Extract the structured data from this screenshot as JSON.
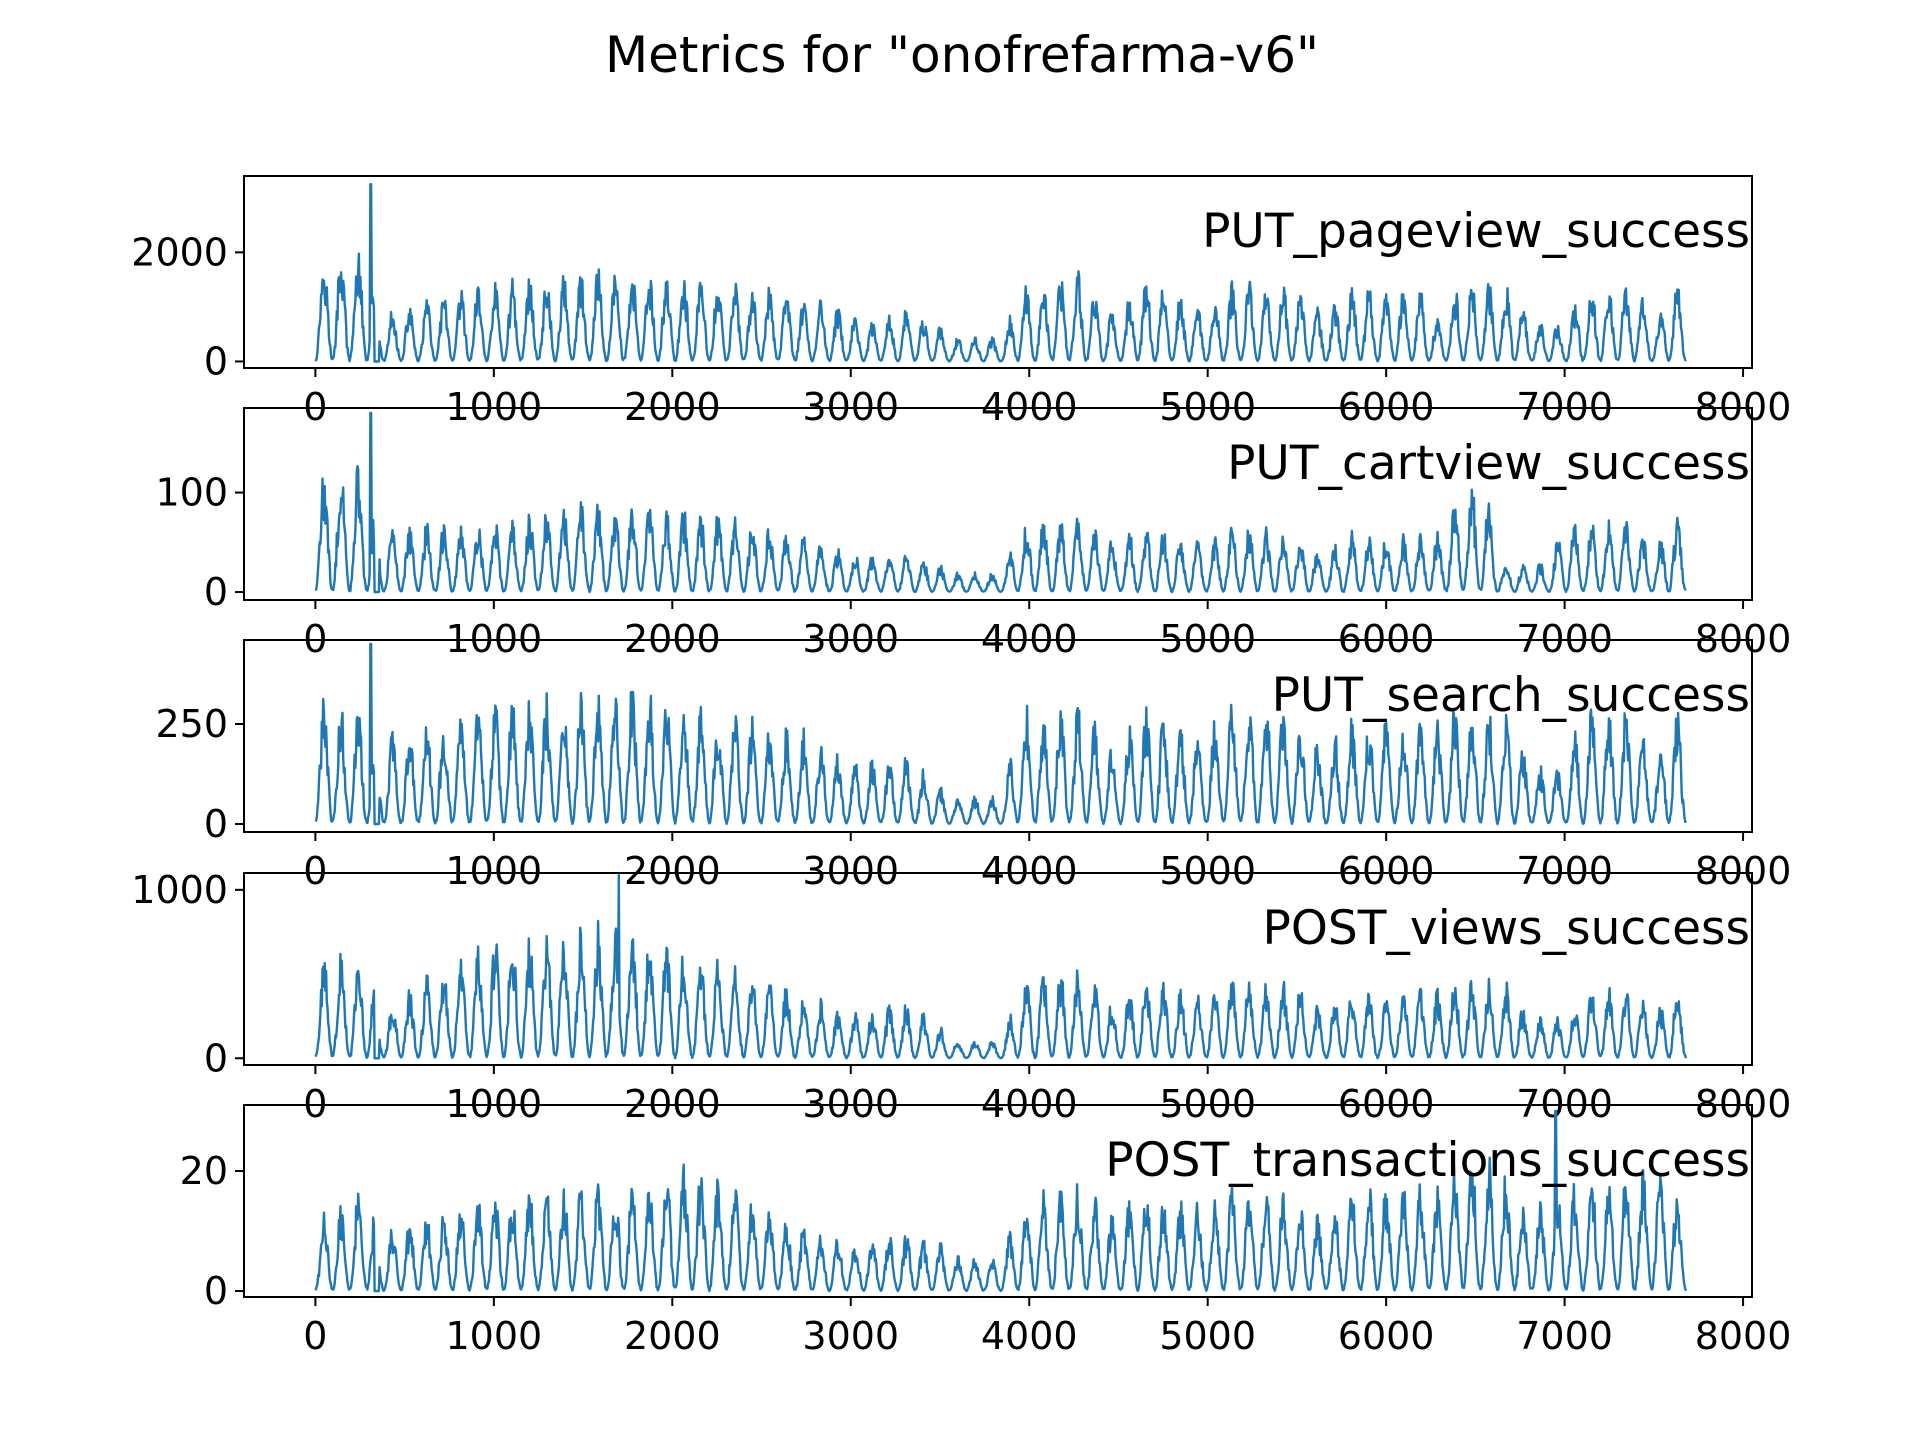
{
  "chart_data": {
    "title": "Metrics for \"onofrefarma-v6\"",
    "type": "line",
    "line_color": "#1f77b4",
    "xlim": [
      -400,
      8050
    ],
    "x_ticks": [
      0,
      1000,
      2000,
      3000,
      4000,
      5000,
      6000,
      7000,
      8000
    ],
    "x_range": [
      0,
      7680
    ],
    "grid": false,
    "panels": [
      {
        "label": "PUT_pageview_success",
        "ylim": [
          -120,
          3400
        ],
        "y_ticks": [
          0,
          2000
        ],
        "tick_labels": [
          "0",
          "2000"
        ],
        "spike_x": 310,
        "spike_y": 3250,
        "profile": [
          [
            0,
            2000
          ],
          [
            300,
            2100
          ],
          [
            350,
            900
          ],
          [
            900,
            1400
          ],
          [
            1600,
            1700
          ],
          [
            1800,
            1700
          ],
          [
            2300,
            1500
          ],
          [
            2700,
            1300
          ],
          [
            2950,
            1000
          ],
          [
            3100,
            700
          ],
          [
            3300,
            1000
          ],
          [
            3500,
            700
          ],
          [
            3550,
            450
          ],
          [
            3850,
            450
          ],
          [
            3950,
            1400
          ],
          [
            4300,
            1700
          ],
          [
            4500,
            800
          ],
          [
            4600,
            1600
          ],
          [
            5000,
            1000
          ],
          [
            5100,
            1500
          ],
          [
            5500,
            1400
          ],
          [
            5650,
            900
          ],
          [
            5800,
            1400
          ],
          [
            6200,
            1400
          ],
          [
            6300,
            700
          ],
          [
            6400,
            1500
          ],
          [
            6700,
            1500
          ],
          [
            6800,
            800
          ],
          [
            7000,
            700
          ],
          [
            7100,
            1400
          ],
          [
            7400,
            1500
          ],
          [
            7500,
            700
          ],
          [
            7600,
            1500
          ],
          [
            7680,
            1400
          ]
        ]
      },
      {
        "label": "PUT_cartview_success",
        "ylim": [
          -8,
          185
        ],
        "y_ticks": [
          0,
          100
        ],
        "tick_labels": [
          "0",
          "100"
        ],
        "spike_x": 310,
        "spike_y": 180,
        "profile": [
          [
            0,
            120
          ],
          [
            250,
            130
          ],
          [
            350,
            70
          ],
          [
            900,
            70
          ],
          [
            1500,
            90
          ],
          [
            1800,
            90
          ],
          [
            2300,
            80
          ],
          [
            2700,
            60
          ],
          [
            3000,
            40
          ],
          [
            3300,
            40
          ],
          [
            3500,
            30
          ],
          [
            3550,
            20
          ],
          [
            3850,
            20
          ],
          [
            3950,
            70
          ],
          [
            4300,
            80
          ],
          [
            4500,
            50
          ],
          [
            4600,
            70
          ],
          [
            5000,
            50
          ],
          [
            5100,
            70
          ],
          [
            5500,
            60
          ],
          [
            5650,
            40
          ],
          [
            5800,
            60
          ],
          [
            6300,
            60
          ],
          [
            6400,
            110
          ],
          [
            6550,
            110
          ],
          [
            6650,
            30
          ],
          [
            6900,
            30
          ],
          [
            7000,
            70
          ],
          [
            7400,
            75
          ],
          [
            7500,
            40
          ],
          [
            7600,
            80
          ],
          [
            7680,
            70
          ]
        ]
      },
      {
        "label": "PUT_search_success",
        "ylim": [
          -20,
          460
        ],
        "y_ticks": [
          0,
          250
        ],
        "tick_labels": [
          "0",
          "250"
        ],
        "spike_x": 310,
        "spike_y": 450,
        "profile": [
          [
            0,
            320
          ],
          [
            250,
            300
          ],
          [
            350,
            220
          ],
          [
            900,
            300
          ],
          [
            1500,
            340
          ],
          [
            1800,
            350
          ],
          [
            2200,
            290
          ],
          [
            2700,
            250
          ],
          [
            3000,
            160
          ],
          [
            3300,
            180
          ],
          [
            3500,
            100
          ],
          [
            3550,
            70
          ],
          [
            3850,
            70
          ],
          [
            3950,
            300
          ],
          [
            4300,
            300
          ],
          [
            4500,
            170
          ],
          [
            4600,
            300
          ],
          [
            5000,
            240
          ],
          [
            5100,
            330
          ],
          [
            5500,
            300
          ],
          [
            5650,
            200
          ],
          [
            5800,
            270
          ],
          [
            6300,
            260
          ],
          [
            6400,
            320
          ],
          [
            6700,
            300
          ],
          [
            6800,
            150
          ],
          [
            7000,
            150
          ],
          [
            7100,
            290
          ],
          [
            7400,
            300
          ],
          [
            7500,
            150
          ],
          [
            7600,
            300
          ],
          [
            7680,
            270
          ]
        ]
      },
      {
        "label": "POST_views_success",
        "ylim": [
          -40,
          1100
        ],
        "y_ticks": [
          0,
          1000
        ],
        "tick_labels": [
          "0",
          "1000"
        ],
        "spike_x": 1700,
        "spike_y": 1090,
        "profile": [
          [
            0,
            600
          ],
          [
            300,
            650
          ],
          [
            350,
            300
          ],
          [
            900,
            700
          ],
          [
            1500,
            800
          ],
          [
            1800,
            800
          ],
          [
            2200,
            600
          ],
          [
            2700,
            420
          ],
          [
            3000,
            260
          ],
          [
            3300,
            350
          ],
          [
            3500,
            200
          ],
          [
            3550,
            110
          ],
          [
            3850,
            110
          ],
          [
            3950,
            500
          ],
          [
            4300,
            550
          ],
          [
            4500,
            300
          ],
          [
            4600,
            500
          ],
          [
            5000,
            380
          ],
          [
            5100,
            500
          ],
          [
            5500,
            450
          ],
          [
            5650,
            300
          ],
          [
            5800,
            420
          ],
          [
            6300,
            420
          ],
          [
            6400,
            500
          ],
          [
            6700,
            450
          ],
          [
            6800,
            250
          ],
          [
            7000,
            250
          ],
          [
            7100,
            420
          ],
          [
            7400,
            450
          ],
          [
            7500,
            250
          ],
          [
            7600,
            450
          ],
          [
            7680,
            400
          ]
        ]
      },
      {
        "label": "POST_transactions_success",
        "ylim": [
          -1,
          31
        ],
        "y_ticks": [
          0,
          20
        ],
        "tick_labels": [
          "0",
          "20"
        ],
        "spike_x": 6950,
        "spike_y": 30,
        "profile": [
          [
            0,
            12
          ],
          [
            300,
            18
          ],
          [
            350,
            10
          ],
          [
            900,
            16
          ],
          [
            1500,
            18
          ],
          [
            1800,
            18
          ],
          [
            2100,
            22
          ],
          [
            2300,
            18
          ],
          [
            2700,
            12
          ],
          [
            3000,
            8
          ],
          [
            3300,
            10
          ],
          [
            3500,
            8
          ],
          [
            3550,
            6
          ],
          [
            3850,
            6
          ],
          [
            3950,
            16
          ],
          [
            4300,
            18
          ],
          [
            4500,
            12
          ],
          [
            4600,
            18
          ],
          [
            5000,
            14
          ],
          [
            5100,
            18
          ],
          [
            5500,
            16
          ],
          [
            5650,
            12
          ],
          [
            5800,
            18
          ],
          [
            6300,
            18
          ],
          [
            6450,
            25
          ],
          [
            6700,
            20
          ],
          [
            6800,
            14
          ],
          [
            7000,
            18
          ],
          [
            7100,
            20
          ],
          [
            7400,
            20
          ],
          [
            7550,
            22
          ],
          [
            7680,
            14
          ]
        ]
      }
    ]
  }
}
